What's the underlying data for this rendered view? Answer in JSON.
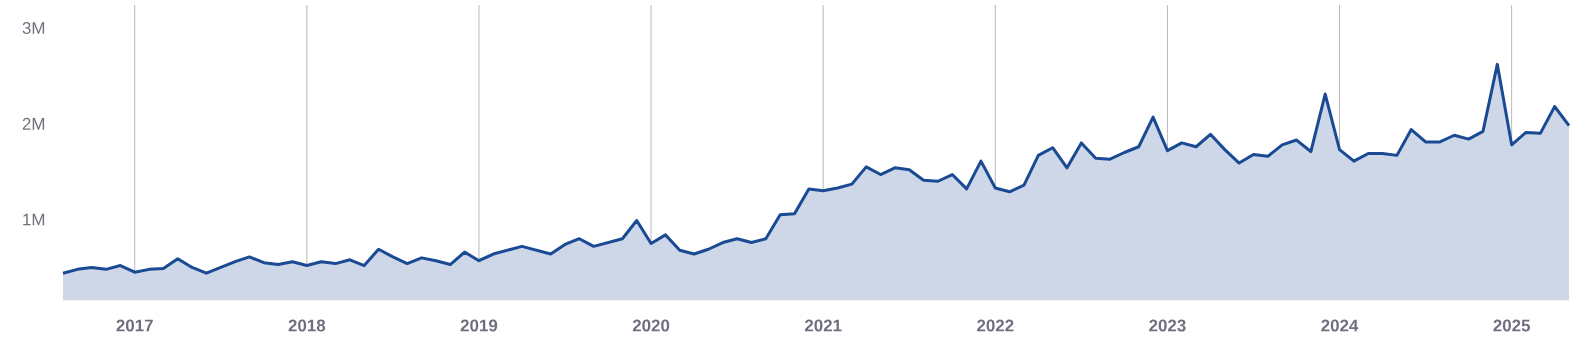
{
  "chart_data": {
    "type": "area",
    "color": "#1a4a94",
    "grid": "x",
    "x": [
      "2016-08",
      "2016-09",
      "2016-10",
      "2016-11",
      "2016-12",
      "2017-01",
      "2017-02",
      "2017-03",
      "2017-04",
      "2017-05",
      "2017-06",
      "2017-07",
      "2017-08",
      "2017-09",
      "2017-10",
      "2017-11",
      "2017-12",
      "2018-01",
      "2018-02",
      "2018-03",
      "2018-04",
      "2018-05",
      "2018-06",
      "2018-07",
      "2018-08",
      "2018-09",
      "2018-10",
      "2018-11",
      "2018-12",
      "2019-01",
      "2019-02",
      "2019-03",
      "2019-04",
      "2019-05",
      "2019-06",
      "2019-07",
      "2019-08",
      "2019-09",
      "2019-10",
      "2019-11",
      "2019-12",
      "2020-01",
      "2020-02",
      "2020-03",
      "2020-04",
      "2020-05",
      "2020-06",
      "2020-07",
      "2020-08",
      "2020-09",
      "2020-10",
      "2020-11",
      "2020-12",
      "2021-01",
      "2021-02",
      "2021-03",
      "2021-04",
      "2021-05",
      "2021-06",
      "2021-07",
      "2021-08",
      "2021-09",
      "2021-10",
      "2021-11",
      "2021-12",
      "2022-01",
      "2022-02",
      "2022-03",
      "2022-04",
      "2022-05",
      "2022-06",
      "2022-07",
      "2022-08",
      "2022-09",
      "2022-10",
      "2022-11",
      "2022-12",
      "2023-01",
      "2023-02",
      "2023-03",
      "2023-04",
      "2023-05",
      "2023-06",
      "2023-07",
      "2023-08",
      "2023-09",
      "2023-10",
      "2023-11",
      "2023-12",
      "2024-01",
      "2024-02",
      "2024-03",
      "2024-04",
      "2024-05",
      "2024-06",
      "2024-07",
      "2024-08",
      "2024-09",
      "2024-10",
      "2024-11",
      "2024-12",
      "2025-01",
      "2025-02",
      "2025-03",
      "2025-04",
      "2025-05"
    ],
    "values": [
      440000,
      480000,
      500000,
      480000,
      520000,
      450000,
      480000,
      490000,
      590000,
      500000,
      440000,
      500000,
      560000,
      610000,
      550000,
      530000,
      560000,
      520000,
      560000,
      540000,
      580000,
      520000,
      690000,
      610000,
      540000,
      600000,
      570000,
      530000,
      660000,
      570000,
      640000,
      680000,
      720000,
      680000,
      640000,
      740000,
      800000,
      720000,
      760000,
      800000,
      990000,
      750000,
      840000,
      680000,
      640000,
      690000,
      760000,
      800000,
      760000,
      800000,
      1050000,
      1060000,
      1320000,
      1300000,
      1330000,
      1370000,
      1550000,
      1470000,
      1540000,
      1520000,
      1410000,
      1400000,
      1470000,
      1320000,
      1610000,
      1330000,
      1290000,
      1360000,
      1670000,
      1750000,
      1540000,
      1800000,
      1640000,
      1630000,
      1700000,
      1760000,
      2070000,
      1720000,
      1800000,
      1760000,
      1890000,
      1730000,
      1590000,
      1680000,
      1660000,
      1780000,
      1830000,
      1710000,
      2310000,
      1730000,
      1610000,
      1690000,
      1690000,
      1670000,
      1940000,
      1810000,
      1810000,
      1880000,
      1840000,
      1920000,
      2620000,
      1780000,
      1910000,
      1900000,
      2180000,
      1980000
    ],
    "xlim": [
      "2016-08",
      "2025-05"
    ],
    "xticks": [
      "2017",
      "2018",
      "2019",
      "2020",
      "2021",
      "2022",
      "2023",
      "2024",
      "2025"
    ],
    "ylim": [
      160000,
      3240000
    ],
    "yticks": [
      {
        "value": 1000000,
        "label": "1M"
      },
      {
        "value": 2000000,
        "label": "2M"
      },
      {
        "value": 3000000,
        "label": "3M"
      }
    ]
  }
}
